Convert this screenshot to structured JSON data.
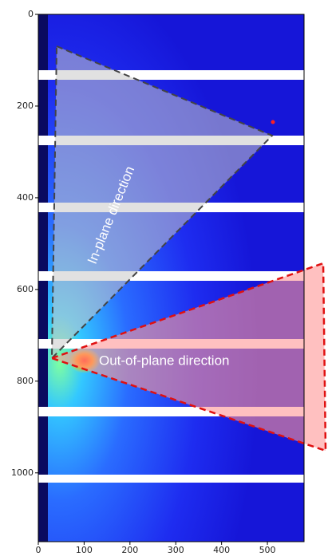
{
  "chart_data": {
    "type": "image",
    "xlim": [
      0,
      580
    ],
    "ylim": [
      1150,
      0
    ],
    "xticks": [
      0,
      100,
      200,
      300,
      400,
      500
    ],
    "yticks": [
      0,
      200,
      400,
      600,
      800,
      1000
    ],
    "annotations": [
      "In-plane direction",
      "Out-of-plane direction"
    ]
  }
}
